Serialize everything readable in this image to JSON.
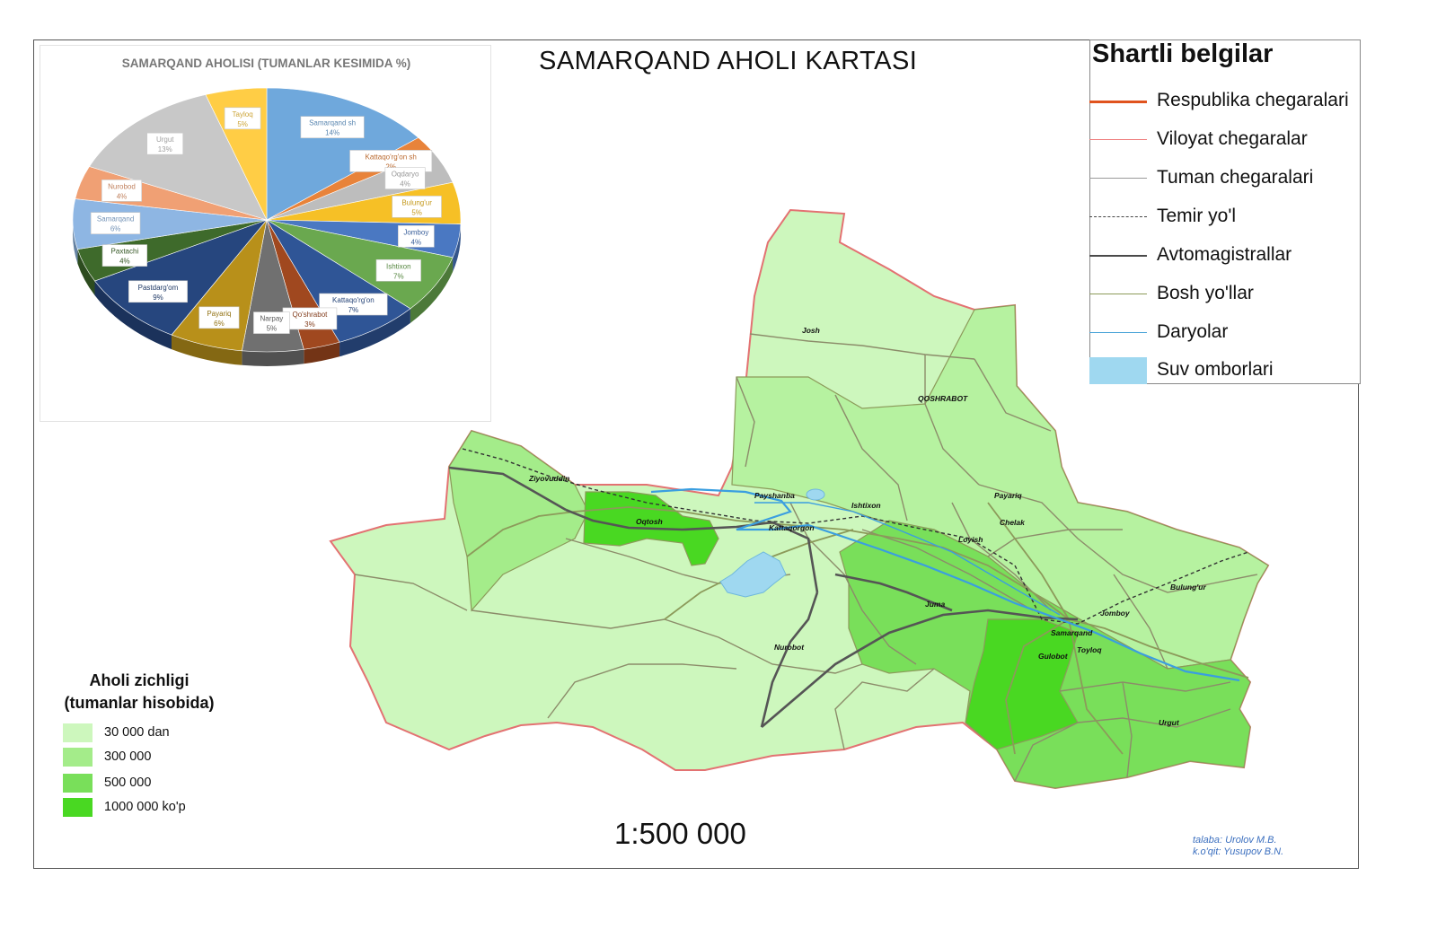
{
  "map_title": "SAMARQAND AHOLI KARTASI",
  "legend": {
    "title": "Shartli belgilar",
    "items": [
      {
        "label": "Respublika chegaralari",
        "style": "line",
        "color": "#e0531e"
      },
      {
        "label": "Viloyat chegaralar",
        "style": "line",
        "color": "#ef7c7c"
      },
      {
        "label": "Tuman chegaralari",
        "style": "line",
        "color": "#9a9a9a"
      },
      {
        "label": "Temir yo'l",
        "style": "dashed",
        "color": "#444444"
      },
      {
        "label": "Avtomagistrallar",
        "style": "line",
        "color": "#4a4a4a"
      },
      {
        "label": "Bosh yo'llar",
        "style": "line",
        "color": "#8c9a5a"
      },
      {
        "label": "Daryolar",
        "style": "line",
        "color": "#4aa3d8"
      },
      {
        "label": "Suv omborlari",
        "style": "fill",
        "color": "#9fd8f0"
      }
    ]
  },
  "pie": {
    "title": "SAMARQAND AHOLISI (TUMANLAR KESIMIDA %)",
    "slices": [
      {
        "name": "Samarqand sh",
        "pct": "14%",
        "value": 14,
        "color": "#6fa8dc"
      },
      {
        "name": "Kattaqo'rg'on sh",
        "pct": "2%",
        "value": 2,
        "color": "#e8833a"
      },
      {
        "name": "Oqdaryo",
        "pct": "4%",
        "value": 4,
        "color": "#bdbdbd"
      },
      {
        "name": "Bulung'ur",
        "pct": "5%",
        "value": 5,
        "color": "#f6c026"
      },
      {
        "name": "Jomboy",
        "pct": "4%",
        "value": 4,
        "color": "#4a78c2"
      },
      {
        "name": "Ishtixon",
        "pct": "7%",
        "value": 7,
        "color": "#6aa84f"
      },
      {
        "name": "Kattaqo'rg'on",
        "pct": "7%",
        "value": 7,
        "color": "#2f5596"
      },
      {
        "name": "Qo'shrabot",
        "pct": "3%",
        "value": 3,
        "color": "#a0481f"
      },
      {
        "name": "Narpay",
        "pct": "5%",
        "value": 5,
        "color": "#707070"
      },
      {
        "name": "Payariq",
        "pct": "6%",
        "value": 6,
        "color": "#b8901a"
      },
      {
        "name": "Pastdarg'om",
        "pct": "9%",
        "value": 9,
        "color": "#26467e"
      },
      {
        "name": "Paxtachi",
        "pct": "4%",
        "value": 4,
        "color": "#3e6a2b"
      },
      {
        "name": "Samarqand",
        "pct": "6%",
        "value": 6,
        "color": "#8eb6e3"
      },
      {
        "name": "Nurobod",
        "pct": "4%",
        "value": 4,
        "color": "#f0a074"
      },
      {
        "name": "Urgut",
        "pct": "13%",
        "value": 13,
        "color": "#c8c8c8"
      },
      {
        "name": "Tayloq",
        "pct": "5%",
        "value": 5,
        "color": "#ffcd45"
      }
    ]
  },
  "map_labels": [
    "Josh",
    "QOSHRABOT",
    "Ziyovuddin",
    "Payshanba",
    "Ishtixon",
    "Payariq",
    "Oqtosh",
    "Kattaqorgon",
    "Chelak",
    "Loyish",
    "Bulung'ur",
    "Juma",
    "Jomboy",
    "Samarqand",
    "Nurobot",
    "Toyloq",
    "Gulobot",
    "Urgut"
  ],
  "density": {
    "title_lines": [
      "Aholi zichligi",
      "(tumanlar hisobida)"
    ],
    "items": [
      {
        "label": "30 000 dan",
        "color": "#cdf7bd"
      },
      {
        "label": "300 000",
        "color": "#a4ec8a"
      },
      {
        "label": "500 000",
        "color": "#79df5a"
      },
      {
        "label": "1000 000 ko'p",
        "color": "#49d822"
      }
    ]
  },
  "scale": "1:500 000",
  "credit": [
    "talaba: Urolov M.B.",
    "k.o'qit: Yusupov B.N."
  ]
}
